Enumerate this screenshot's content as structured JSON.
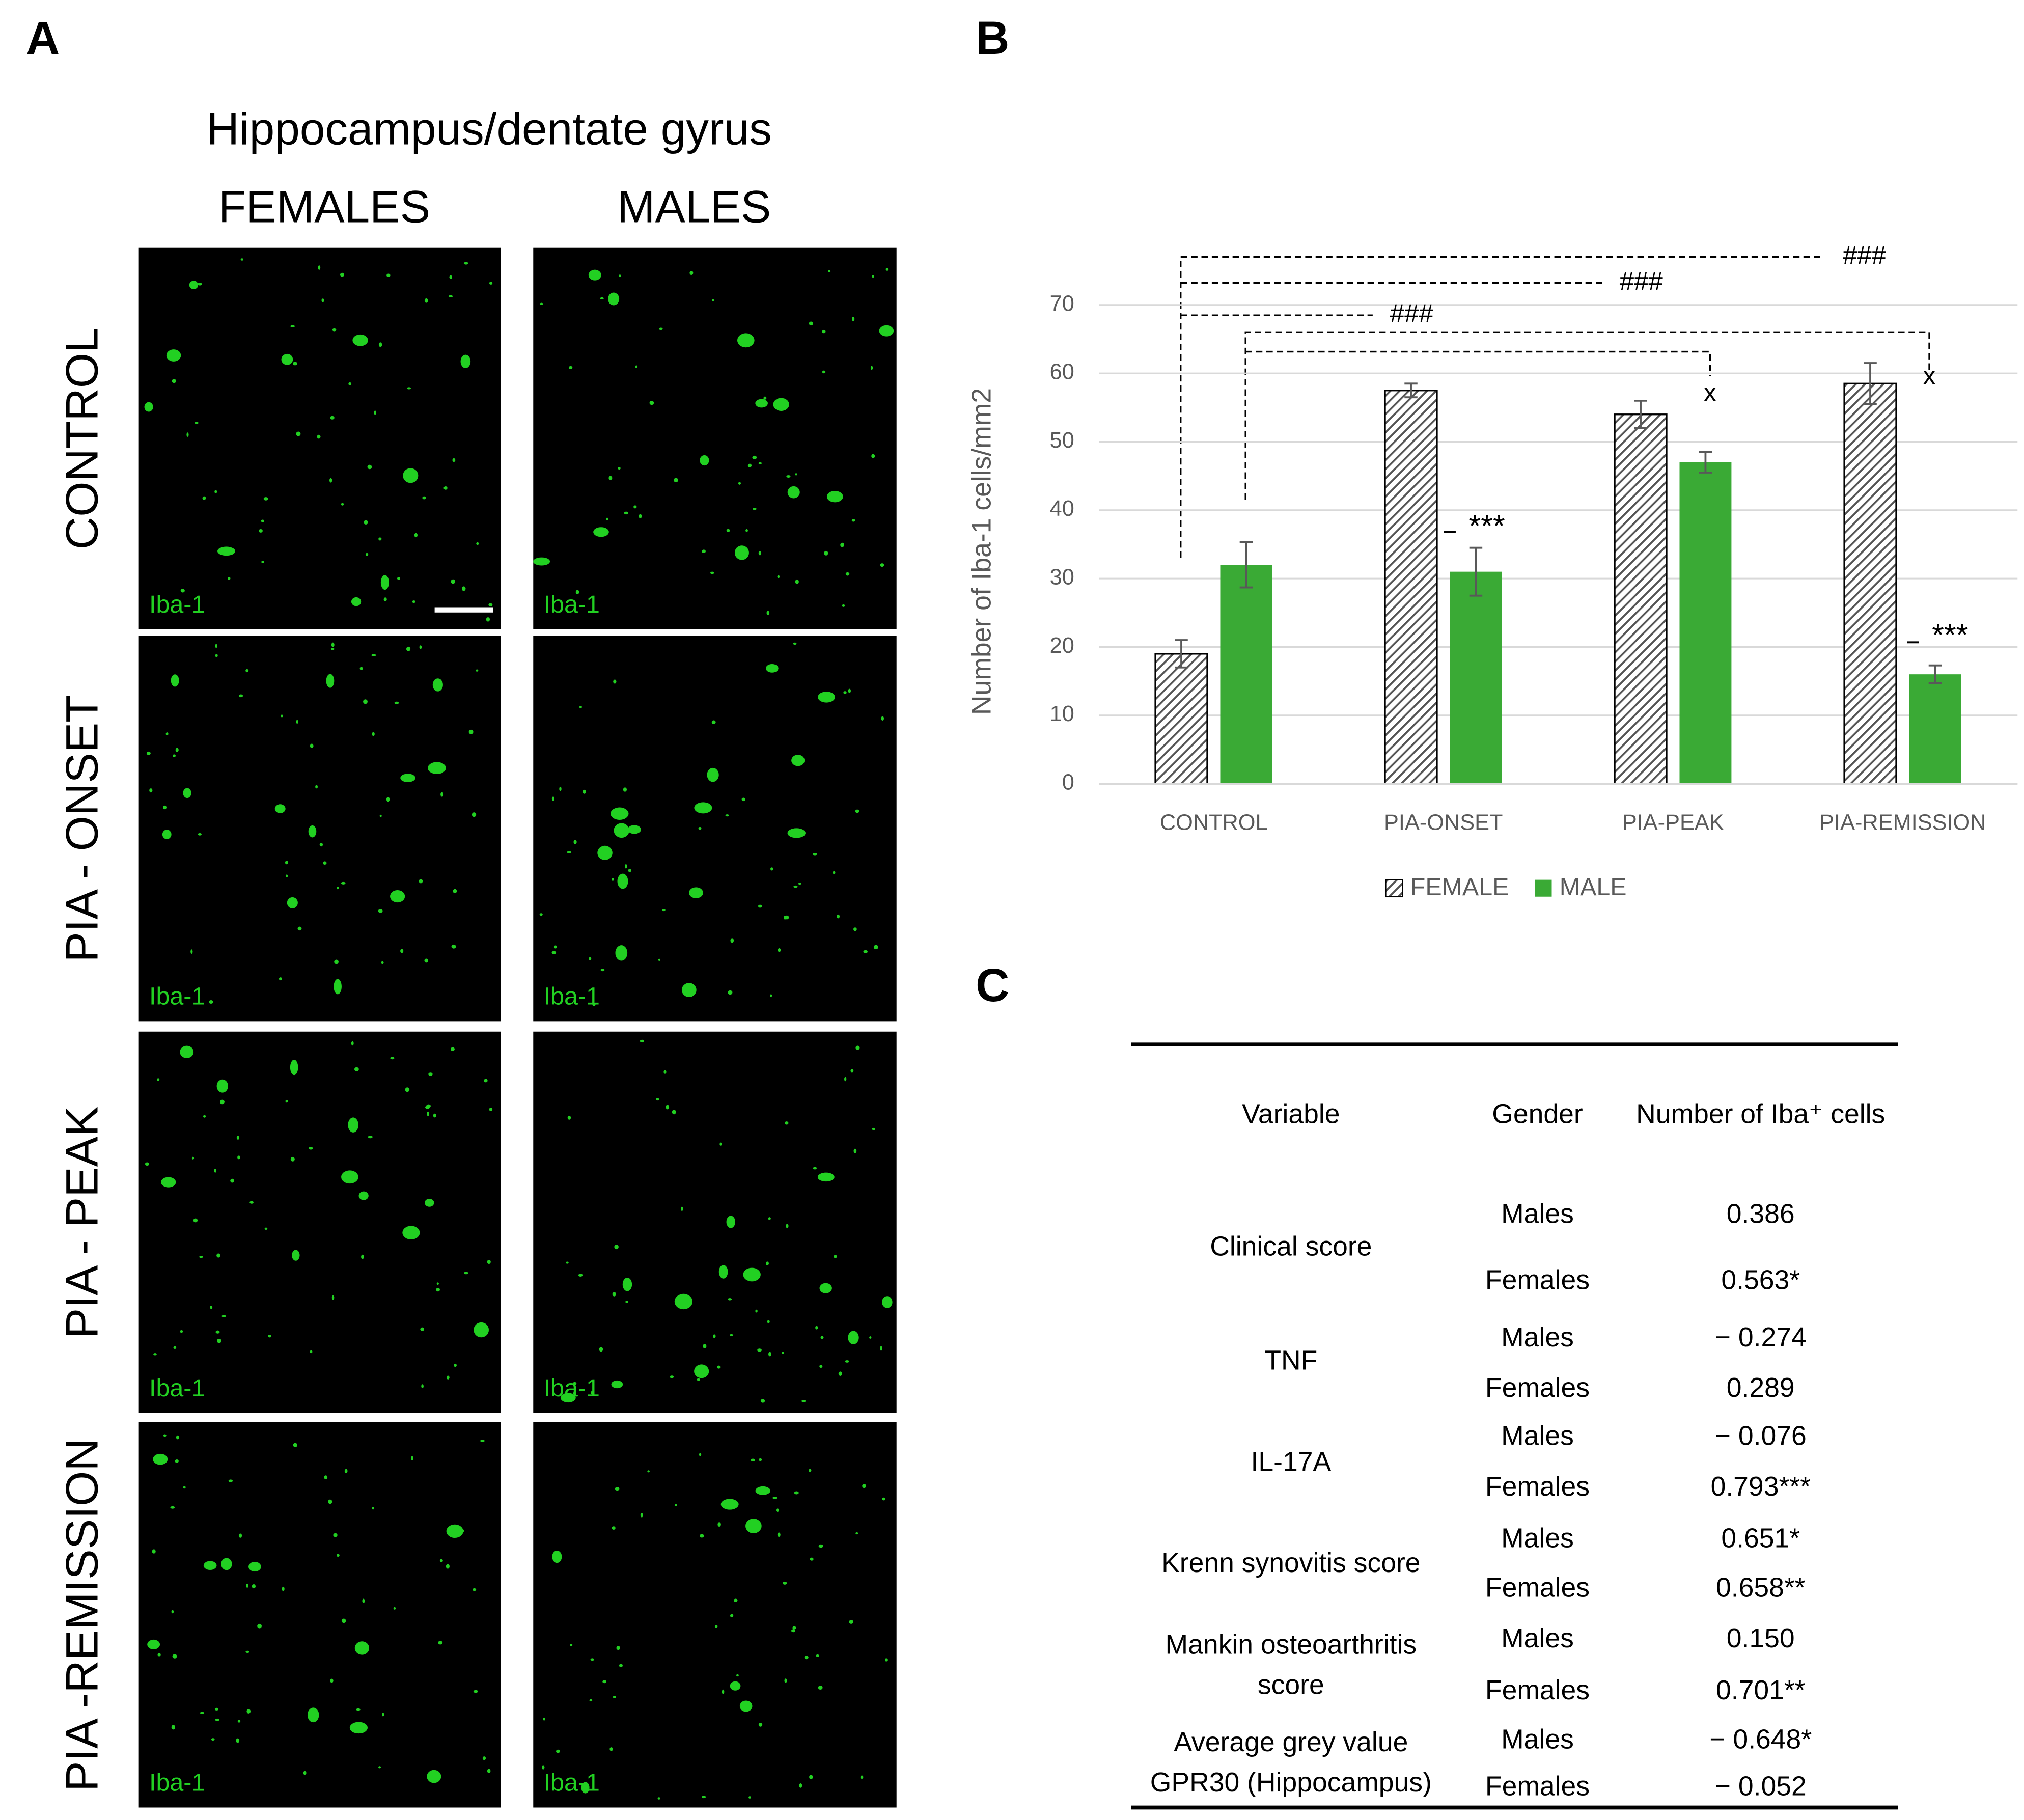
{
  "panel_labels": [
    "A",
    "B",
    "C"
  ],
  "panel_a": {
    "title": "Hippocampus/dentate gyrus",
    "columns": [
      "FEMALES",
      "MALES"
    ],
    "rows": [
      "CONTROL",
      "PIA - ONSET",
      "PIA - PEAK",
      "PIA -REMISSION"
    ],
    "stain_label": "Iba-1"
  },
  "chart_data": {
    "type": "bar",
    "y_label": "Number of Iba-1 cells/mm2",
    "categories": [
      "CONTROL",
      "PIA-ONSET",
      "PIA-PEAK",
      "PIA-REMISSION"
    ],
    "series": [
      {
        "name": "FEMALE",
        "color": "#555555",
        "pattern": "hatch",
        "values": [
          19,
          57.5,
          54,
          58.5
        ],
        "errors": [
          2,
          1,
          2,
          3
        ]
      },
      {
        "name": "MALE",
        "color": "#3aaa35",
        "values": [
          32,
          31,
          47,
          16
        ],
        "errors": [
          3.3,
          3.5,
          1.5,
          1.3
        ]
      }
    ],
    "ylim": [
      0,
      70
    ],
    "yticks": [
      0,
      10,
      20,
      30,
      40,
      50,
      60,
      70
    ],
    "grid": true,
    "legend": "bottom",
    "annotations": [
      "###",
      "###",
      "###",
      "***",
      "***",
      "x",
      "x"
    ]
  },
  "panel_c": {
    "headers": [
      "Variable",
      "Gender",
      "Number of Iba⁺ cells"
    ],
    "rows": [
      {
        "variable": [
          "Clinical score"
        ],
        "entries": [
          [
            "Males",
            "0.386"
          ],
          [
            "Females",
            "0.563*"
          ]
        ]
      },
      {
        "variable": [
          "TNF"
        ],
        "entries": [
          [
            "Males",
            "− 0.274"
          ],
          [
            "Females",
            "0.289"
          ]
        ]
      },
      {
        "variable": [
          "IL-17A"
        ],
        "entries": [
          [
            "Males",
            "− 0.076"
          ],
          [
            "Females",
            "0.793***"
          ]
        ]
      },
      {
        "variable": [
          "Krenn synovitis score"
        ],
        "entries": [
          [
            "Males",
            "0.651*"
          ],
          [
            "Females",
            "0.658**"
          ]
        ]
      },
      {
        "variable": [
          "Mankin osteoarthritis",
          "score"
        ],
        "entries": [
          [
            "Males",
            "0.150"
          ],
          [
            "Females",
            "0.701**"
          ]
        ]
      },
      {
        "variable": [
          "Average grey value",
          "GPR30 (Hippocampus)"
        ],
        "entries": [
          [
            "Males",
            "− 0.648*"
          ],
          [
            "Females",
            "− 0.052"
          ]
        ]
      }
    ]
  }
}
